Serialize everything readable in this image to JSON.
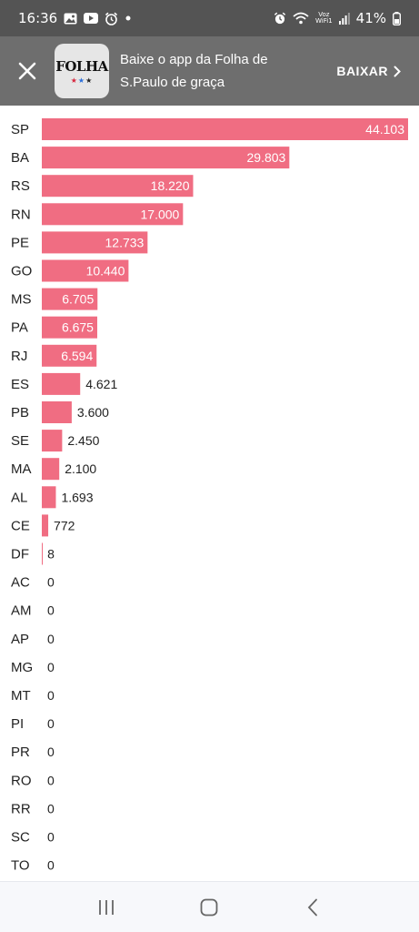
{
  "status_bar": {
    "time": "16:36",
    "voz_label": "Voz",
    "wifi_label": "WiFi1",
    "battery": "41%",
    "left_icons": [
      "gallery-icon",
      "youtube-icon",
      "alarm-icon",
      "dot-icon"
    ],
    "right_icons": [
      "alarm-icon",
      "wifi-icon",
      "signal-icon",
      "battery-icon"
    ]
  },
  "banner": {
    "logo_text": "FOLHA",
    "logo_stars": "★★★",
    "message": "Baixe o app da Folha de S.Paulo de graça",
    "action_label": "BAIXAR",
    "close_icon": "close-icon",
    "action_icon": "chevron-right-icon"
  },
  "colors": {
    "bar": "#f06d82",
    "label_inside": "#ffffff",
    "label_outside": "#222222",
    "axis_text": "#222222"
  },
  "chart_data": {
    "type": "bar",
    "orientation": "horizontal",
    "categories": [
      "SP",
      "BA",
      "RS",
      "RN",
      "PE",
      "GO",
      "MS",
      "PA",
      "RJ",
      "ES",
      "PB",
      "SE",
      "MA",
      "AL",
      "CE",
      "DF",
      "AC",
      "AM",
      "AP",
      "MG",
      "MT",
      "PI",
      "PR",
      "RO",
      "RR",
      "SC",
      "TO"
    ],
    "values": [
      44103,
      29803,
      18220,
      17000,
      12733,
      10440,
      6705,
      6675,
      6594,
      4621,
      3600,
      2450,
      2100,
      1693,
      772,
      8,
      0,
      0,
      0,
      0,
      0,
      0,
      0,
      0,
      0,
      0,
      0
    ],
    "value_labels": [
      "44.103",
      "29.803",
      "18.220",
      "17.000",
      "12.733",
      "10.440",
      "6.705",
      "6.675",
      "6.594",
      "4.621",
      "3.600",
      "2.450",
      "2.100",
      "1.693",
      "772",
      "8",
      "0",
      "0",
      "0",
      "0",
      "0",
      "0",
      "0",
      "0",
      "0",
      "0",
      "0"
    ],
    "xlim": [
      0,
      44103
    ],
    "grid": false,
    "legend": "none"
  },
  "nav_bar": {
    "buttons": [
      "recent-apps-icon",
      "home-icon",
      "back-icon"
    ]
  }
}
